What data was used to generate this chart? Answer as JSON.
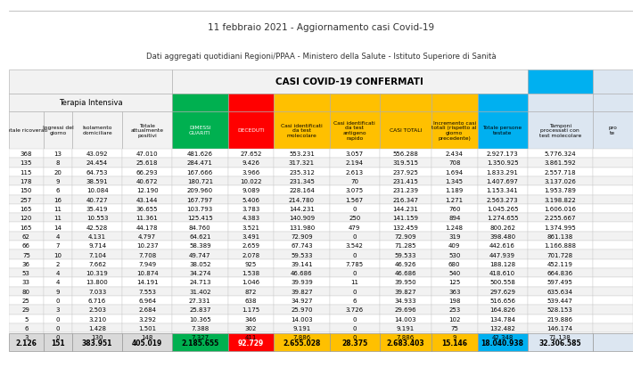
{
  "title1": "11 febbraio 2021 - Aggiornamento casi Covid-19",
  "title2": "Dati aggregati quotidiani Regioni/PPAA - Ministero della Salute - Istituto Superiore di Sanità",
  "main_header": "CASI COVID-19 CONFERMATI",
  "section_header": "Terapia Intensiva",
  "col_headers": [
    "Totale ricoverati",
    "Ingressi del\ngiorno",
    "Isolamento\ndomiciliare",
    "Totale\nattualmente\npositivi",
    "DIMESSI\nGUARITI",
    "DECEDUTI",
    "Casi identificati\nda test\nmolecolare",
    "Casi identificati\nda test\nantigeno\nrapido",
    "CASI TOTALI",
    "Incremento casi\ntotali (rispetto al\ngiorno\nprecedente)",
    "Totale persone\ntestate",
    "Tamponi\nprocessati con\ntest molecolare",
    "pro\nte"
  ],
  "col_colors": [
    "#f2f2f2",
    "#f2f2f2",
    "#f2f2f2",
    "#f2f2f2",
    "#00b050",
    "#ff0000",
    "#ffc000",
    "#ffc000",
    "#ffc000",
    "#ffc000",
    "#00b0f0",
    "#dce6f1",
    "#dce6f1"
  ],
  "rows": [
    [
      "368",
      "13",
      "43.092",
      "47.010",
      "481.626",
      "27.652",
      "553.231",
      "3.057",
      "556.288",
      "2.434",
      "2.927.173",
      "5.776.324"
    ],
    [
      "135",
      "8",
      "24.454",
      "25.618",
      "284.471",
      "9.426",
      "317.321",
      "2.194",
      "319.515",
      "708",
      "1.350.925",
      "3.861.592"
    ],
    [
      "115",
      "20",
      "64.753",
      "66.293",
      "167.666",
      "3.966",
      "235.312",
      "2.613",
      "237.925",
      "1.694",
      "1.833.291",
      "2.557.718"
    ],
    [
      "178",
      "9",
      "38.591",
      "40.672",
      "180.721",
      "10.022",
      "231.345",
      "70",
      "231.415",
      "1.345",
      "1.407.697",
      "3.137.026"
    ],
    [
      "150",
      "6",
      "10.084",
      "12.190",
      "209.960",
      "9.089",
      "228.164",
      "3.075",
      "231.239",
      "1.189",
      "1.153.341",
      "1.953.789"
    ],
    [
      "257",
      "16",
      "40.727",
      "43.144",
      "167.797",
      "5.406",
      "214.780",
      "1.567",
      "216.347",
      "1.271",
      "2.563.273",
      "3.198.822"
    ],
    [
      "165",
      "11",
      "35.419",
      "36.655",
      "103.793",
      "3.783",
      "144.231",
      "0",
      "144.231",
      "760",
      "1.045.265",
      "1.606.016"
    ],
    [
      "120",
      "11",
      "10.553",
      "11.361",
      "125.415",
      "4.383",
      "140.909",
      "250",
      "141.159",
      "894",
      "1.274.655",
      "2.255.667"
    ],
    [
      "165",
      "14",
      "42.528",
      "44.178",
      "84.760",
      "3.521",
      "131.980",
      "479",
      "132.459",
      "1.248",
      "800.262",
      "1.374.995"
    ],
    [
      "62",
      "4",
      "4.131",
      "4.797",
      "64.621",
      "3.491",
      "72.909",
      "0",
      "72.909",
      "319",
      "398.480",
      "861.138"
    ],
    [
      "66",
      "7",
      "9.714",
      "10.237",
      "58.389",
      "2.659",
      "67.743",
      "3.542",
      "71.285",
      "409",
      "442.616",
      "1.166.888"
    ],
    [
      "75",
      "10",
      "7.104",
      "7.708",
      "49.747",
      "2.078",
      "59.533",
      "0",
      "59.533",
      "530",
      "447.939",
      "701.728"
    ],
    [
      "36",
      "2",
      "7.662",
      "7.949",
      "38.052",
      "925",
      "39.141",
      "7.785",
      "46.926",
      "680",
      "188.128",
      "452.119"
    ],
    [
      "53",
      "4",
      "10.319",
      "10.874",
      "34.274",
      "1.538",
      "46.686",
      "0",
      "46.686",
      "540",
      "418.610",
      "664.836"
    ],
    [
      "33",
      "4",
      "13.800",
      "14.191",
      "24.713",
      "1.046",
      "39.939",
      "11",
      "39.950",
      "125",
      "500.558",
      "597.495"
    ],
    [
      "80",
      "9",
      "7.033",
      "7.553",
      "31.402",
      "872",
      "39.827",
      "0",
      "39.827",
      "363",
      "297.629",
      "635.634"
    ],
    [
      "25",
      "0",
      "6.716",
      "6.964",
      "27.331",
      "638",
      "34.927",
      "6",
      "34.933",
      "198",
      "516.656",
      "539.447"
    ],
    [
      "29",
      "3",
      "2.503",
      "2.684",
      "25.837",
      "1.175",
      "25.970",
      "3.726",
      "29.696",
      "253",
      "164.826",
      "528.153"
    ],
    [
      "5",
      "0",
      "3.210",
      "3.292",
      "10.365",
      "346",
      "14.003",
      "0",
      "14.003",
      "102",
      "134.784",
      "219.886"
    ],
    [
      "6",
      "0",
      "1.428",
      "1.501",
      "7.388",
      "302",
      "9.191",
      "0",
      "9.191",
      "75",
      "132.482",
      "146.174"
    ],
    [
      "3",
      "0",
      "130",
      "148",
      "7.327",
      "411",
      "7.886",
      "0",
      "7.886",
      "9",
      "42.348",
      "71.138"
    ]
  ],
  "totals": [
    "2.126",
    "151",
    "383.951",
    "405.019",
    "2.185.655",
    "92.729",
    "2.655.028",
    "28.375",
    "2.683.403",
    "15.146",
    "18.040.938",
    "32.306.585"
  ],
  "total_col_colors": [
    "#d9d9d9",
    "#d9d9d9",
    "#d9d9d9",
    "#d9d9d9",
    "#00b050",
    "#ff0000",
    "#ffc000",
    "#ffc000",
    "#ffc000",
    "#ffc000",
    "#00b0f0",
    "#dce6f1",
    "#dce6f1"
  ]
}
